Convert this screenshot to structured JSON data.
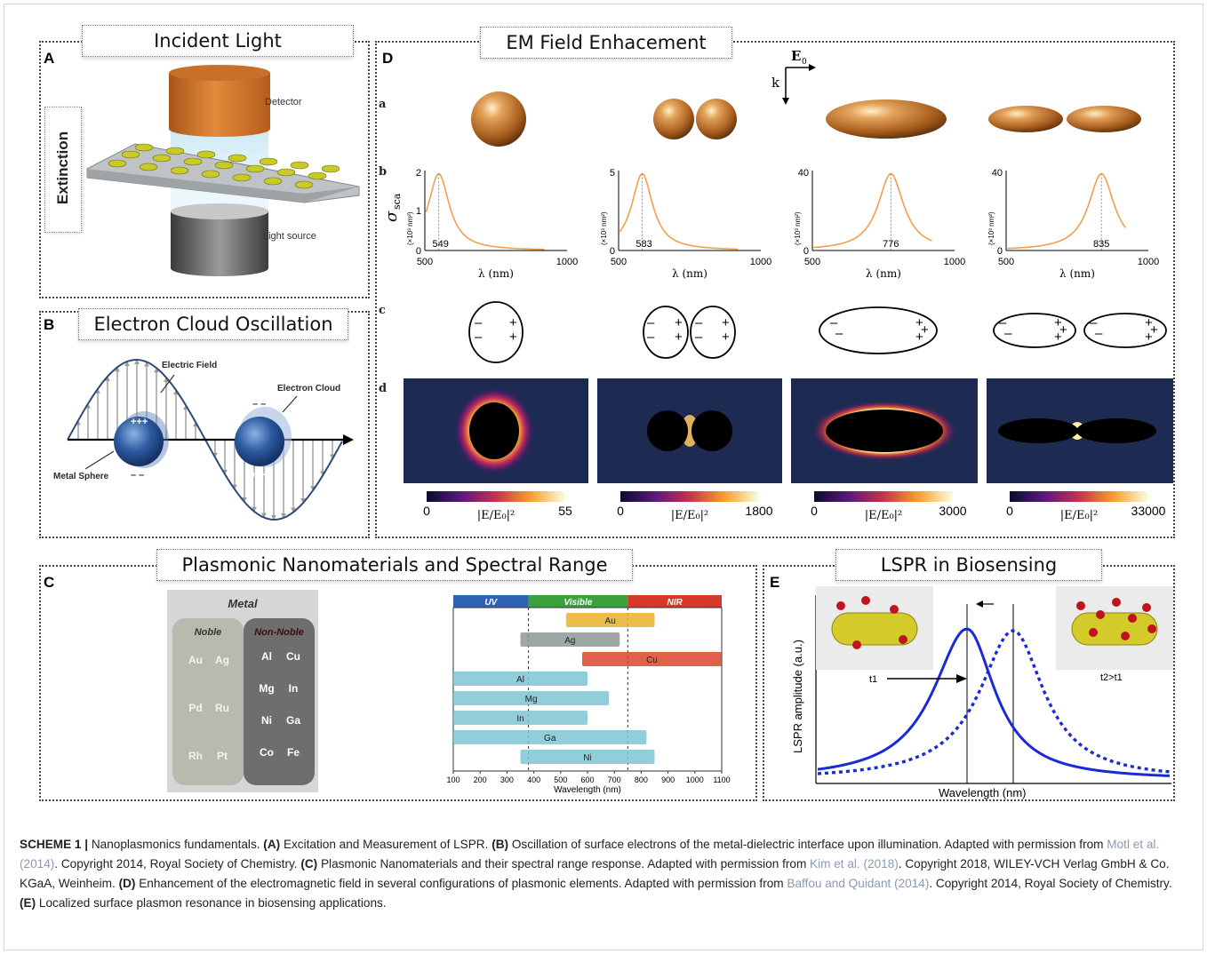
{
  "panels": {
    "a": {
      "letter": "A",
      "title": "Incident Light",
      "vertical_label": "Extinction",
      "detector_label": "Detector",
      "source_label": "Light source"
    },
    "b": {
      "letter": "B",
      "title": "Electron Cloud Oscillation",
      "field_label": "Electric Field",
      "cloud_label": "Electron Cloud",
      "sphere_label": "Metal Sphere",
      "plus": "+++",
      "minus": "– –"
    },
    "c": {
      "letter": "C",
      "title": "Plasmonic Nanomaterials and Spectral Range",
      "metal_header": "Metal",
      "noble_header": "Noble",
      "nonnoble_header": "Non-Noble",
      "noble_rows": [
        [
          "Au",
          "Ag"
        ],
        [
          "Pd",
          "Ru"
        ],
        [
          "Rh",
          "Pt"
        ]
      ],
      "nonnoble_rows": [
        [
          "Al",
          "Cu"
        ],
        [
          "Mg",
          "In"
        ],
        [
          "Ni",
          "Ga"
        ],
        [
          "Co",
          "Fe"
        ]
      ],
      "bands": [
        {
          "label": "UV",
          "color": "#2f62b6"
        },
        {
          "label": "Visible",
          "color": "#3aa23a"
        },
        {
          "label": "NIR",
          "color": "#d6382c"
        }
      ],
      "xlabel": "Wavelength (nm)",
      "xticks": [
        "100",
        "200",
        "300",
        "400",
        "500",
        "600",
        "700",
        "800",
        "900",
        "1000",
        "1100"
      ],
      "ranges": [
        {
          "name": "Au",
          "from": 520,
          "to": 850,
          "color": "#e8b22a"
        },
        {
          "name": "Ag",
          "from": 350,
          "to": 720,
          "color": "#8e9896"
        },
        {
          "name": "Cu",
          "from": 580,
          "to": 1100,
          "color": "#d9452a"
        },
        {
          "name": "Al",
          "from": 100,
          "to": 600,
          "color": "#7fc6d3"
        },
        {
          "name": "Mg",
          "from": 100,
          "to": 680,
          "color": "#7fc6d3"
        },
        {
          "name": "In",
          "from": 100,
          "to": 600,
          "color": "#7fc6d3"
        },
        {
          "name": "Ga",
          "from": 100,
          "to": 820,
          "color": "#7fc6d3"
        },
        {
          "name": "Ni",
          "from": 350,
          "to": 850,
          "color": "#7fc6d3"
        }
      ]
    },
    "d": {
      "letter": "D",
      "title": "EM Field Enhacement",
      "e0": "E",
      "e0_sub": "0",
      "k": "k",
      "rows": [
        "a",
        "b",
        "c",
        "d"
      ],
      "xticks": [
        "500",
        "1000"
      ],
      "xlabel": "λ (nm)",
      "sigma": "σ",
      "sigma_sub": "sca",
      "unit": "(×10³ nm²)",
      "plots": [
        {
          "peak": 549,
          "ymax": 2,
          "ytick_mid": "1",
          "ytick_top": "2",
          "ytick_zero": "0",
          "fwhm": 90
        },
        {
          "peak": 583,
          "ymax": 5,
          "ytick_mid": "",
          "ytick_top": "5",
          "ytick_zero": "0",
          "fwhm": 90
        },
        {
          "peak": 776,
          "ymax": 40,
          "ytick_mid": "",
          "ytick_top": "40",
          "ytick_zero": "0",
          "fwhm": 110
        },
        {
          "peak": 835,
          "ymax": 40,
          "ytick_mid": "",
          "ytick_top": "40",
          "ytick_zero": "0",
          "fwhm": 110
        }
      ],
      "colorbars": [
        {
          "min": "0",
          "max": "55",
          "label": "|E/E₀|²"
        },
        {
          "min": "0",
          "max": "1800",
          "label": "|E/E₀|²"
        },
        {
          "min": "0",
          "max": "3000",
          "label": "|E/E₀|²"
        },
        {
          "min": "0",
          "max": "33000",
          "label": "|E/E₀|²"
        }
      ]
    },
    "e": {
      "letter": "E",
      "title": "LSPR in Biosensing",
      "ylabel": "LSPR amplitude (a.u.)",
      "xlabel": "Wavelength (nm)",
      "t1": "t1",
      "t2": "t2>t1"
    }
  },
  "caption": {
    "scheme": "SCHEME 1 |",
    "t1": " Nanoplasmonics fundamentals. ",
    "a": "(A)",
    "t2": " Excitation and Measurement of LSPR. ",
    "b": "(B)",
    "t3": " Oscillation of surface electrons of the metal-dielectric interface upon illumination. Adapted with permission from ",
    "ref1": "Motl et al. (2014)",
    "t4": ". Copyright 2014, Royal Society of Chemistry. ",
    "c": "(C)",
    "t5": " Plasmonic Nanomaterials and their spectral range response. Adapted with permission from ",
    "ref2": "Kim et al. (2018)",
    "t6": ". Copyright 2018, WILEY-VCH Verlag GmbH & Co. KGaA, Weinheim. ",
    "d": "(D)",
    "t7": " Enhancement of the electromagnetic field in several configurations of plasmonic elements. Adapted with permission from ",
    "ref3": "Baffou and Quidant (2014)",
    "t8": ". Copyright 2014, Royal Society of Chemistry. ",
    "e": "(E)",
    "t9": " Localized surface plasmon resonance in biosensing applications."
  }
}
